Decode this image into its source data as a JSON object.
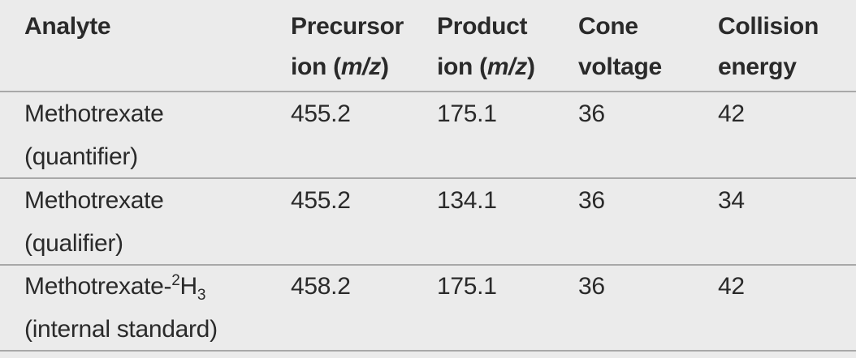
{
  "table": {
    "header": [
      {
        "lines": [
          [
            {
              "text": "Analyte"
            }
          ]
        ]
      },
      {
        "lines": [
          [
            {
              "text": "Precursor"
            }
          ],
          [
            {
              "text": "ion ("
            },
            {
              "text": "m/z",
              "italic": true
            },
            {
              "text": ")"
            }
          ]
        ]
      },
      {
        "lines": [
          [
            {
              "text": "Product"
            }
          ],
          [
            {
              "text": "ion ("
            },
            {
              "text": "m/z",
              "italic": true
            },
            {
              "text": ")"
            }
          ]
        ]
      },
      {
        "lines": [
          [
            {
              "text": "Cone"
            }
          ],
          [
            {
              "text": "voltage"
            }
          ]
        ]
      },
      {
        "lines": [
          [
            {
              "text": "Collision"
            }
          ],
          [
            {
              "text": "energy"
            }
          ]
        ]
      }
    ],
    "rows": [
      {
        "analyte": [
          [
            {
              "text": "Methotrexate"
            }
          ],
          [
            {
              "text": "(quantifier)"
            }
          ]
        ],
        "precursor": 455.2,
        "product": 175.1,
        "cone": 36,
        "collision": 42
      },
      {
        "analyte": [
          [
            {
              "text": "Methotrexate"
            }
          ],
          [
            {
              "text": "(qualifier)"
            }
          ]
        ],
        "precursor": 455.2,
        "product": 134.1,
        "cone": 36,
        "collision": 34
      },
      {
        "analyte": [
          [
            {
              "text": "Methotrexate-"
            },
            {
              "text": "2",
              "script": "sup"
            },
            {
              "text": "H"
            },
            {
              "text": "3",
              "script": "sub"
            }
          ],
          [
            {
              "text": "(internal standard)"
            }
          ]
        ],
        "precursor": 458.2,
        "product": 175.1,
        "cone": 36,
        "collision": 42
      }
    ]
  }
}
